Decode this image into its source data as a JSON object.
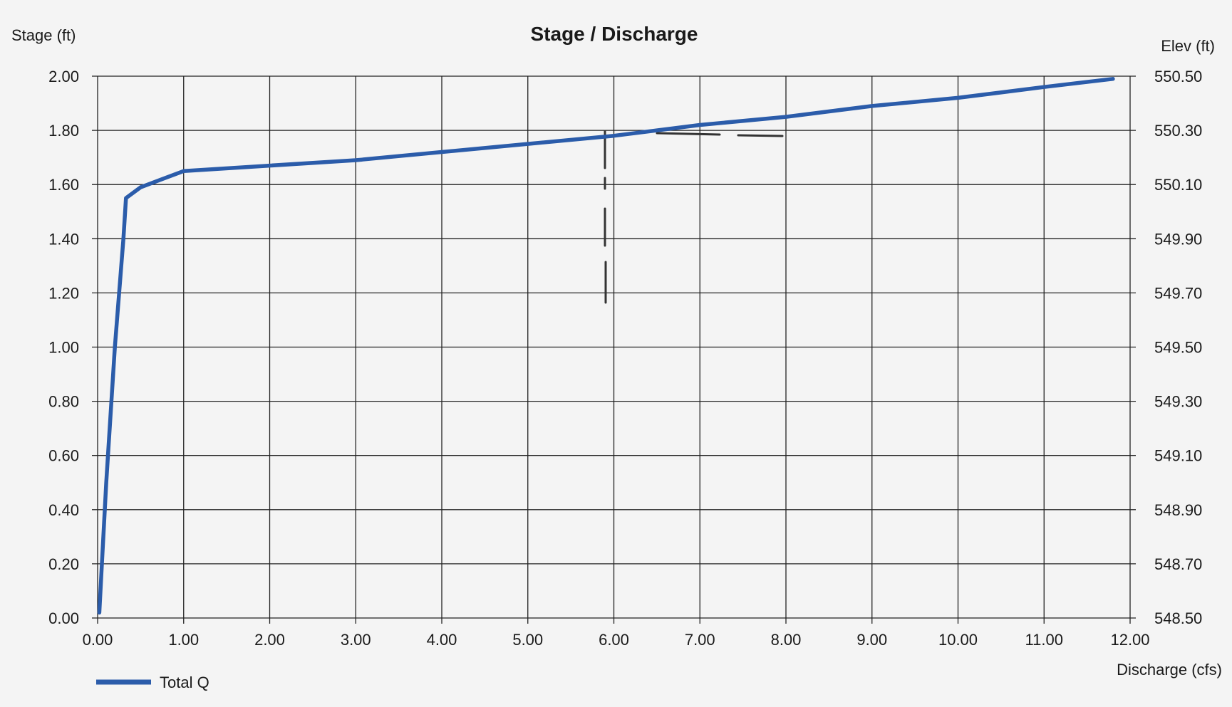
{
  "chart_data": {
    "type": "line",
    "title": "Stage / Discharge",
    "xlabel": "Discharge (cfs)",
    "ylabel_left": "Stage (ft)",
    "ylabel_right": "Elev (ft)",
    "xlim": [
      0,
      12
    ],
    "ylim": [
      0,
      2
    ],
    "y2lim": [
      548.5,
      550.5
    ],
    "x_ticks": [
      "0.00",
      "1.00",
      "2.00",
      "3.00",
      "4.00",
      "5.00",
      "6.00",
      "7.00",
      "8.00",
      "9.00",
      "10.00",
      "11.00",
      "12.00"
    ],
    "y_ticks": [
      "0.00",
      "0.20",
      "0.40",
      "0.60",
      "0.80",
      "1.00",
      "1.20",
      "1.40",
      "1.60",
      "1.80",
      "2.00"
    ],
    "y2_ticks": [
      "548.50",
      "548.70",
      "548.90",
      "549.10",
      "549.30",
      "549.50",
      "549.70",
      "549.90",
      "550.10",
      "550.30",
      "550.50"
    ],
    "grid": true,
    "legend_position": "bottom-left",
    "series": [
      {
        "name": "Total Q",
        "color": "#2b5caa",
        "x": [
          0.02,
          0.05,
          0.1,
          0.2,
          0.3,
          0.33,
          0.5,
          0.75,
          1.0,
          2.0,
          3.0,
          4.0,
          5.0,
          6.0,
          7.0,
          8.0,
          9.0,
          10.0,
          11.0,
          11.8
        ],
        "y": [
          0.02,
          0.2,
          0.5,
          1.0,
          1.4,
          1.55,
          1.59,
          1.62,
          1.65,
          1.67,
          1.69,
          1.72,
          1.75,
          1.78,
          1.82,
          1.85,
          1.89,
          1.92,
          1.96,
          1.99
        ]
      }
    ]
  }
}
